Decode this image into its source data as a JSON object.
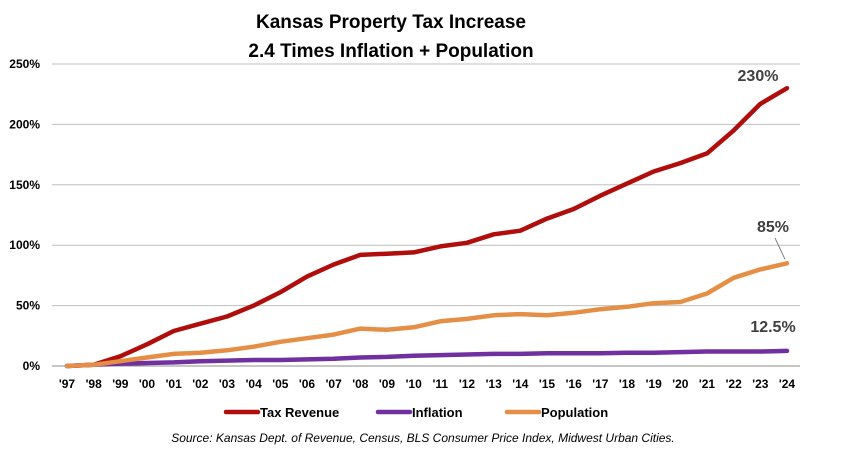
{
  "chart_data": {
    "type": "line",
    "title_line1": "Kansas Property Tax Increase",
    "title_line2": "2.4 Times Inflation + Population",
    "categories": [
      "'97",
      "'98",
      "'99",
      "'00",
      "'01",
      "'02",
      "'03",
      "'04",
      "'05",
      "'06",
      "'07",
      "'08",
      "'09",
      "'10",
      "'11",
      "'12",
      "'13",
      "'14",
      "'15",
      "'16",
      "'17",
      "'18",
      "'19",
      "'20",
      "'21",
      "'22",
      "'23",
      "'24"
    ],
    "ylim": [
      0,
      250
    ],
    "yticks": [
      0,
      50,
      100,
      150,
      200,
      250
    ],
    "ytick_labels": [
      "0%",
      "50%",
      "100%",
      "150%",
      "200%",
      "250%"
    ],
    "grid": true,
    "legend_position": "bottom",
    "series": [
      {
        "name": "Tax Revenue",
        "color": "#b00d0d",
        "values": [
          0,
          1,
          8,
          18,
          29,
          35,
          41,
          50,
          61,
          74,
          84,
          92,
          93,
          94,
          99,
          102,
          109,
          112,
          122,
          130,
          141,
          151,
          161,
          168,
          176,
          195,
          217,
          230
        ],
        "end_label": "230%"
      },
      {
        "name": "Inflation",
        "color": "#7030a0",
        "values": [
          0,
          1,
          2,
          2.5,
          3,
          4,
          4.5,
          5,
          5,
          5.5,
          6,
          7,
          7.5,
          8.5,
          9,
          9.5,
          10,
          10,
          10.5,
          10.5,
          10.5,
          11,
          11,
          11.5,
          12,
          12,
          12,
          12.5
        ],
        "end_label": "12.5%"
      },
      {
        "name": "Population",
        "color": "#e58e45",
        "values": [
          0,
          1,
          4,
          7,
          10,
          11,
          13,
          16,
          20,
          23,
          26,
          31,
          30,
          32,
          37,
          39,
          42,
          43,
          42,
          44,
          47,
          49,
          52,
          53,
          60,
          73,
          80,
          85
        ],
        "end_label": "85%"
      }
    ],
    "source": "Source: Kansas Dept. of Revenue, Census, BLS Consumer Price Index, Midwest Urban Cities."
  }
}
